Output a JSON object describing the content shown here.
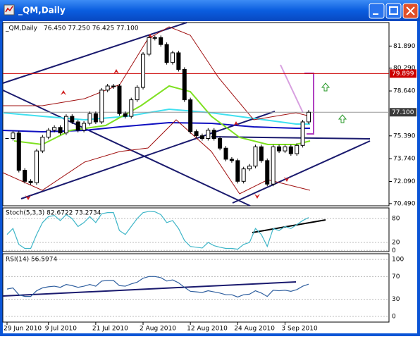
{
  "window_title": "_QM,Daily",
  "chart_data": {
    "type": "candlestick",
    "symbol": "_QM,Daily",
    "ohlc": "76.450 77.250 76.425 77.100",
    "categories": [
      "29 Jun 2010",
      null,
      null,
      null,
      null,
      null,
      null,
      "9 Jul 2010",
      null,
      null,
      null,
      null,
      null,
      null,
      null,
      "21 Jul 2010",
      null,
      null,
      null,
      null,
      null,
      null,
      null,
      "2 Aug 2010",
      null,
      null,
      null,
      null,
      null,
      null,
      null,
      "12 Aug 2010",
      null,
      null,
      null,
      null,
      null,
      null,
      null,
      "24 Aug 2010",
      null,
      null,
      null,
      null,
      null,
      null,
      null,
      "3 Sep 2010",
      null,
      null,
      null,
      null
    ],
    "close": [
      75.2,
      75.6,
      72.9,
      72.1,
      72.0,
      74.3,
      75.3,
      75.8,
      76.0,
      75.6,
      76.8,
      76.4,
      75.8,
      76.3,
      77.0,
      76.4,
      78.7,
      79.0,
      79.0,
      77.0,
      76.8,
      78.0,
      78.9,
      81.3,
      82.5,
      82.5,
      82.0,
      80.7,
      81.4,
      80.2,
      78.0,
      75.7,
      75.4,
      75.2,
      75.8,
      75.2,
      74.5,
      73.7,
      73.6,
      72.1,
      73.0,
      73.2,
      74.6,
      73.6,
      71.9,
      74.6,
      74.3,
      74.6,
      74.1,
      74.7,
      76.4,
      77.1
    ],
    "ylim": [
      70.33,
      83.59
    ],
    "yticks": [
      {
        "value": 70.49,
        "label": "70.490"
      },
      {
        "value": 72.09,
        "label": "72.090"
      },
      {
        "value": 73.74,
        "label": "73.740"
      },
      {
        "value": 75.39,
        "label": "75.390"
      },
      {
        "value": 78.64,
        "label": "78.640"
      },
      {
        "value": 80.29,
        "label": "80.290"
      },
      {
        "value": 81.89,
        "label": "81.890"
      }
    ],
    "levels": [
      {
        "value": 79.899,
        "label": "79.899",
        "color": "#cc0000"
      },
      {
        "value": 77.1,
        "label": "77.100",
        "color": "#3a3a3a"
      }
    ],
    "stoch": {
      "label": "Stoch(5,3,3) 82.6722 73.2734",
      "color": "#3fb6c8",
      "values": [
        40,
        55,
        15,
        5,
        5,
        40,
        70,
        85,
        88,
        75,
        90,
        80,
        60,
        70,
        85,
        70,
        92,
        95,
        95,
        50,
        40,
        60,
        80,
        95,
        98,
        97,
        90,
        70,
        75,
        55,
        25,
        10,
        8,
        6,
        20,
        12,
        8,
        5,
        5,
        3,
        15,
        20,
        55,
        40,
        10,
        55,
        50,
        60,
        55,
        65,
        75,
        82.6722
      ],
      "ylim": [
        -3,
        105
      ],
      "yticks": [
        0,
        20,
        80
      ]
    },
    "rsi": {
      "label": "RSI(14) 56.5974",
      "color": "#2f5f9f",
      "values": [
        48,
        50,
        38,
        35,
        35,
        45,
        50,
        52,
        53,
        51,
        56,
        54,
        51,
        53,
        56,
        53,
        62,
        63,
        63,
        54,
        53,
        57,
        60,
        67,
        70,
        70,
        68,
        62,
        64,
        59,
        51,
        44,
        43,
        42,
        45,
        43,
        41,
        38,
        38,
        34,
        38,
        39,
        45,
        41,
        35,
        46,
        45,
        46,
        44,
        47,
        53,
        56.5974
      ],
      "ylim": [
        -10,
        110
      ],
      "yticks": [
        0,
        30,
        70,
        100
      ]
    }
  }
}
